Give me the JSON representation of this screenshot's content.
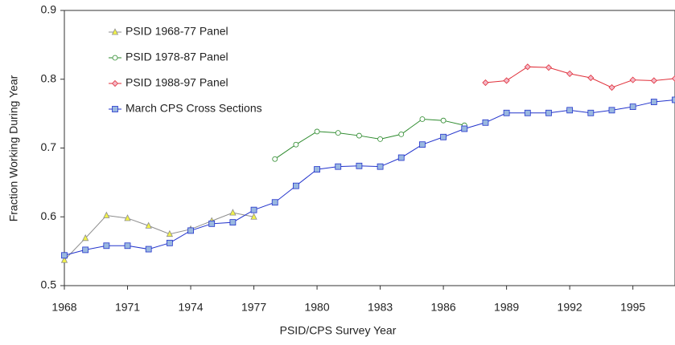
{
  "chart_data": {
    "type": "line",
    "xlabel": "PSID/CPS Survey Year",
    "ylabel": "Fraction Working During Year",
    "x": [
      1968,
      1969,
      1970,
      1971,
      1972,
      1973,
      1974,
      1975,
      1976,
      1977,
      1978,
      1979,
      1980,
      1981,
      1982,
      1983,
      1984,
      1985,
      1986,
      1987,
      1988,
      1989,
      1990,
      1991,
      1992,
      1993,
      1994,
      1995,
      1996,
      1997
    ],
    "series": [
      {
        "name": "PSID 1968-77 Panel",
        "color": "#8c8c8c",
        "marker": "triangle",
        "marker_color": "#f2f24a",
        "values": [
          0.537,
          0.569,
          0.602,
          0.598,
          0.587,
          0.575,
          0.582,
          0.594,
          0.606,
          0.6,
          null,
          null,
          null,
          null,
          null,
          null,
          null,
          null,
          null,
          null,
          null,
          null,
          null,
          null,
          null,
          null,
          null,
          null,
          null,
          null
        ]
      },
      {
        "name": "PSID 1978-87 Panel",
        "color": "#2e8b2e",
        "marker": "circle",
        "marker_color": "#ffffff",
        "values": [
          null,
          null,
          null,
          null,
          null,
          null,
          null,
          null,
          null,
          null,
          0.684,
          0.705,
          0.724,
          0.722,
          0.718,
          0.713,
          0.72,
          0.742,
          0.74,
          0.733,
          null,
          null,
          null,
          null,
          null,
          null,
          null,
          null,
          null,
          null
        ]
      },
      {
        "name": "PSID 1988-97 Panel",
        "color": "#e0303a",
        "marker": "diamond",
        "marker_color": "#f4b8c8",
        "values": [
          null,
          null,
          null,
          null,
          null,
          null,
          null,
          null,
          null,
          null,
          null,
          null,
          null,
          null,
          null,
          null,
          null,
          null,
          null,
          null,
          0.795,
          0.798,
          0.818,
          0.817,
          0.808,
          0.802,
          0.788,
          0.799,
          0.798,
          0.801
        ]
      },
      {
        "name": "March CPS Cross Sections",
        "color": "#2233cc",
        "marker": "square",
        "marker_color": "#9ab8e0",
        "values": [
          0.544,
          0.552,
          0.558,
          0.558,
          0.553,
          0.562,
          0.58,
          0.59,
          0.592,
          0.61,
          0.621,
          0.645,
          0.669,
          0.673,
          0.674,
          0.673,
          0.686,
          0.705,
          0.716,
          0.728,
          0.737,
          0.751,
          0.751,
          0.751,
          0.755,
          0.751,
          0.755,
          0.76,
          0.767,
          0.77
        ]
      }
    ],
    "xlim": [
      1968,
      1997
    ],
    "xticks": [
      1968,
      1971,
      1974,
      1977,
      1980,
      1983,
      1986,
      1989,
      1992,
      1995
    ],
    "ylim": [
      0.5,
      0.9
    ],
    "yticks": [
      0.5,
      0.6,
      0.7,
      0.8,
      0.9
    ],
    "legend": "upper left"
  }
}
